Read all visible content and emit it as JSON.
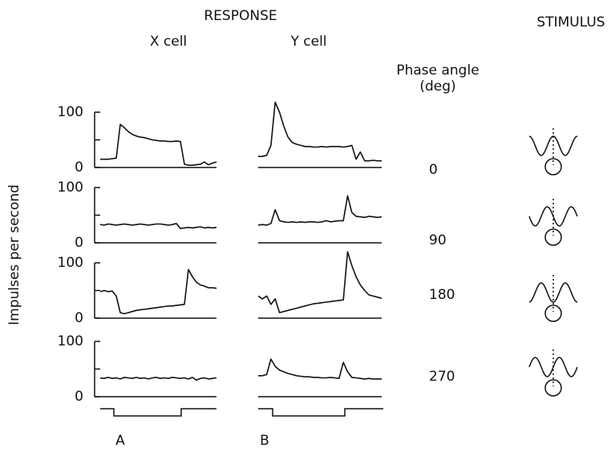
{
  "labels": {
    "response": "RESPONSE",
    "stimulus": "STIMULUS",
    "x_cell": "X cell",
    "y_cell": "Y cell",
    "phase_title": "Phase angle",
    "phase_unit": "(deg)",
    "y_axis": "Impulses per second",
    "panel_a": "A",
    "panel_b": "B"
  },
  "phase_angles": [
    "0",
    "90",
    "180",
    "270"
  ],
  "chart_data": [
    {
      "type": "line",
      "color": "#111111",
      "ylim": [
        0,
        100
      ],
      "yticks": [
        0,
        100
      ],
      "minor_yticks": [
        50
      ],
      "values": [
        15,
        15,
        15,
        16,
        17,
        78,
        72,
        65,
        60,
        57,
        55,
        54,
        52,
        50,
        49,
        48,
        48,
        47,
        47,
        48,
        47,
        6,
        4,
        4,
        5,
        6,
        10,
        5,
        8,
        10
      ]
    },
    {
      "type": "line",
      "color": "#111111",
      "ylim": [
        0,
        100
      ],
      "values": [
        20,
        20,
        22,
        40,
        118,
        100,
        75,
        55,
        45,
        42,
        40,
        38,
        38,
        37,
        37,
        38,
        37,
        38,
        38,
        38,
        37,
        38,
        40,
        15,
        28,
        12,
        12,
        13,
        12,
        12
      ]
    },
    {
      "type": "line",
      "color": "#111111",
      "ylim": [
        0,
        100
      ],
      "yticks": [
        0,
        100
      ],
      "minor_yticks": [
        50
      ],
      "values": [
        33,
        32,
        34,
        33,
        32,
        33,
        34,
        33,
        32,
        33,
        34,
        33,
        32,
        33,
        34,
        34,
        33,
        32,
        33,
        35,
        26,
        27,
        28,
        27,
        28,
        29,
        27,
        28,
        27,
        28
      ]
    },
    {
      "type": "line",
      "color": "#111111",
      "ylim": [
        0,
        100
      ],
      "values": [
        32,
        33,
        32,
        35,
        60,
        40,
        38,
        37,
        38,
        37,
        38,
        37,
        38,
        38,
        37,
        38,
        40,
        38,
        39,
        40,
        40,
        85,
        55,
        48,
        47,
        46,
        48,
        47,
        46,
        47
      ]
    },
    {
      "type": "line",
      "color": "#111111",
      "ylim": [
        0,
        100
      ],
      "yticks": [
        0,
        100
      ],
      "minor_yticks": [
        50
      ],
      "values": [
        48,
        50,
        48,
        49,
        40,
        10,
        8,
        10,
        12,
        14,
        15,
        16,
        17,
        18,
        19,
        20,
        21,
        22,
        22,
        23,
        24,
        25,
        88,
        75,
        65,
        60,
        58,
        55,
        55,
        54
      ]
    },
    {
      "type": "line",
      "color": "#111111",
      "ylim": [
        0,
        100
      ],
      "values": [
        40,
        35,
        40,
        25,
        35,
        10,
        12,
        14,
        16,
        18,
        20,
        22,
        24,
        26,
        27,
        28,
        29,
        30,
        31,
        32,
        33,
        120,
        95,
        75,
        60,
        50,
        42,
        40,
        38,
        36
      ]
    },
    {
      "type": "line",
      "color": "#111111",
      "ylim": [
        0,
        100
      ],
      "yticks": [
        0,
        100
      ],
      "minor_yticks": [
        50
      ],
      "values": [
        34,
        33,
        35,
        33,
        34,
        32,
        35,
        34,
        33,
        35,
        33,
        34,
        32,
        34,
        35,
        33,
        34,
        33,
        35,
        34,
        33,
        34,
        32,
        35,
        30,
        33,
        34,
        32,
        33,
        34
      ]
    },
    {
      "type": "line",
      "color": "#111111",
      "ylim": [
        0,
        100
      ],
      "values": [
        38,
        38,
        40,
        68,
        55,
        48,
        45,
        42,
        40,
        38,
        37,
        36,
        36,
        35,
        35,
        34,
        34,
        35,
        34,
        33,
        62,
        45,
        35,
        34,
        33,
        32,
        33,
        32,
        32,
        32
      ]
    }
  ]
}
